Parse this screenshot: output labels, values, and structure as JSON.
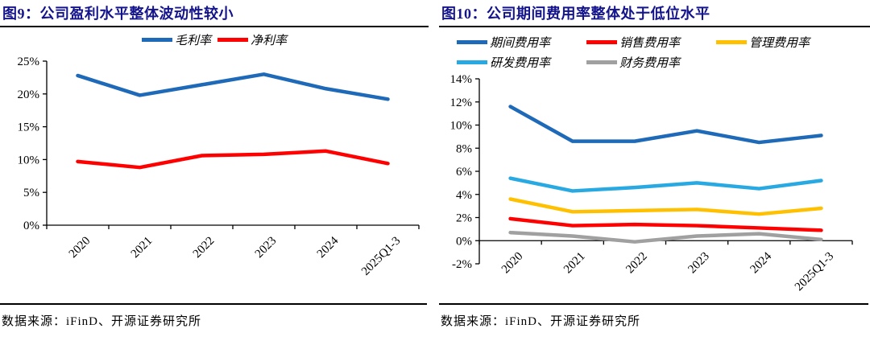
{
  "style": {
    "title_color": "#14148C",
    "axis_color": "#000000",
    "rule_color": "#000000",
    "background": "#FFFFFF"
  },
  "chart_data": [
    {
      "type": "line",
      "title": "图9：公司盈利水平整体波动性较小",
      "categories": [
        "2020",
        "2021",
        "2022",
        "2023",
        "2024",
        "2025Q1-3"
      ],
      "series": [
        {
          "name": "毛利率",
          "color": "#1E6AB8",
          "values": [
            22.8,
            19.8,
            21.4,
            23.0,
            20.8,
            19.2
          ]
        },
        {
          "name": "净利率",
          "color": "#FF0000",
          "values": [
            9.7,
            8.8,
            10.6,
            10.8,
            11.3,
            9.4
          ]
        }
      ],
      "ylim": [
        0,
        25
      ],
      "y_tick_values": [
        0,
        5,
        10,
        15,
        20,
        25
      ],
      "y_tick_labels": [
        "0%",
        "5%",
        "10%",
        "15%",
        "20%",
        "25%"
      ],
      "grid": false,
      "legend_position": "top-center",
      "source": "数据来源：iFinD、开源证券研究所"
    },
    {
      "type": "line",
      "title": "图10：公司期间费用率整体处于低位水平",
      "categories": [
        "2020",
        "2021",
        "2022",
        "2023",
        "2024",
        "2025Q1-3"
      ],
      "series": [
        {
          "name": "期间费用率",
          "color": "#1E6AB8",
          "values": [
            11.6,
            8.6,
            8.6,
            9.5,
            8.5,
            9.1
          ]
        },
        {
          "name": "销售费用率",
          "color": "#FF0000",
          "values": [
            1.9,
            1.3,
            1.4,
            1.3,
            1.1,
            0.9
          ]
        },
        {
          "name": "管理费用率",
          "color": "#FFC000",
          "values": [
            3.6,
            2.5,
            2.6,
            2.7,
            2.3,
            2.8
          ]
        },
        {
          "name": "研发费用率",
          "color": "#29A9E1",
          "values": [
            5.4,
            4.3,
            4.6,
            5.0,
            4.5,
            5.2
          ]
        },
        {
          "name": "财务费用率",
          "color": "#A0A0A0",
          "values": [
            0.7,
            0.4,
            -0.1,
            0.4,
            0.6,
            0.1
          ]
        }
      ],
      "ylim": [
        -2,
        14
      ],
      "y_tick_values": [
        -2,
        0,
        2,
        4,
        6,
        8,
        10,
        12,
        14
      ],
      "y_tick_labels": [
        "-2%",
        "0%",
        "2%",
        "4%",
        "6%",
        "8%",
        "10%",
        "12%",
        "14%"
      ],
      "grid": false,
      "legend_position": "top-left",
      "source": "数据来源：iFinD、开源证券研究所"
    }
  ]
}
